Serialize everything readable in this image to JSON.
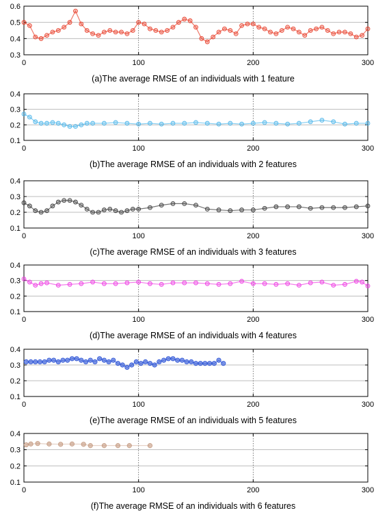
{
  "chart_data": [
    {
      "type": "line",
      "caption": "(a)The average RMSE of an individuals with 1 feature",
      "xlim": [
        0,
        300
      ],
      "ylim": [
        0.3,
        0.6
      ],
      "xticks": [
        0,
        100,
        200,
        300
      ],
      "yticks": [
        0.3,
        0.4,
        0.5,
        0.6
      ],
      "ytick_labels": [
        "0.3",
        "0.4",
        "0.5",
        "0.6"
      ],
      "grid": true,
      "marker": "circle",
      "color": "#e8402b",
      "series": [
        {
          "x": [
            0,
            5,
            10,
            15,
            20,
            25,
            30,
            35,
            40,
            45,
            50,
            55,
            60,
            65,
            70,
            75,
            80,
            85,
            90,
            95,
            100,
            105,
            110,
            115,
            120,
            125,
            130,
            135,
            140,
            145,
            150,
            155,
            160,
            165,
            170,
            175,
            180,
            185,
            190,
            195,
            200,
            205,
            210,
            215,
            220,
            225,
            230,
            235,
            240,
            245,
            250,
            255,
            260,
            265,
            270,
            275,
            280,
            285,
            290,
            295,
            300
          ],
          "values": [
            0.5,
            0.48,
            0.41,
            0.4,
            0.42,
            0.44,
            0.45,
            0.47,
            0.5,
            0.57,
            0.49,
            0.45,
            0.43,
            0.42,
            0.44,
            0.45,
            0.44,
            0.44,
            0.43,
            0.45,
            0.5,
            0.49,
            0.46,
            0.45,
            0.44,
            0.45,
            0.47,
            0.5,
            0.52,
            0.51,
            0.47,
            0.4,
            0.38,
            0.41,
            0.44,
            0.46,
            0.45,
            0.43,
            0.48,
            0.49,
            0.49,
            0.47,
            0.46,
            0.44,
            0.43,
            0.45,
            0.47,
            0.46,
            0.44,
            0.42,
            0.45,
            0.46,
            0.47,
            0.45,
            0.43,
            0.44,
            0.44,
            0.43,
            0.41,
            0.42,
            0.46
          ]
        }
      ]
    },
    {
      "type": "line",
      "caption": "(b)The average RMSE of an individuals with 2 features",
      "xlim": [
        0,
        300
      ],
      "ylim": [
        0.1,
        0.4
      ],
      "xticks": [
        0,
        100,
        200,
        300
      ],
      "yticks": [
        0.1,
        0.2,
        0.3,
        0.4
      ],
      "ytick_labels": [
        "0.1",
        "0.2",
        "0.3",
        "0.4"
      ],
      "grid": true,
      "marker": "circle",
      "color": "#4fb6ea",
      "series": [
        {
          "x": [
            0,
            5,
            10,
            15,
            20,
            25,
            30,
            35,
            40,
            45,
            50,
            55,
            60,
            70,
            80,
            90,
            100,
            110,
            120,
            130,
            140,
            150,
            160,
            170,
            180,
            190,
            200,
            210,
            220,
            230,
            240,
            250,
            260,
            270,
            280,
            290,
            300
          ],
          "values": [
            0.27,
            0.25,
            0.22,
            0.21,
            0.21,
            0.215,
            0.21,
            0.2,
            0.19,
            0.19,
            0.2,
            0.21,
            0.21,
            0.21,
            0.215,
            0.21,
            0.205,
            0.21,
            0.205,
            0.21,
            0.21,
            0.215,
            0.21,
            0.205,
            0.21,
            0.205,
            0.21,
            0.215,
            0.21,
            0.205,
            0.21,
            0.22,
            0.23,
            0.22,
            0.205,
            0.21,
            0.21
          ]
        }
      ]
    },
    {
      "type": "line",
      "caption": "(c)The average RMSE of an individuals with 3 features",
      "xlim": [
        0,
        300
      ],
      "ylim": [
        0.1,
        0.4
      ],
      "xticks": [
        0,
        100,
        200,
        300
      ],
      "yticks": [
        0.1,
        0.2,
        0.3,
        0.4
      ],
      "ytick_labels": [
        "0.1",
        "0.2",
        "0.3",
        "0.4"
      ],
      "grid": true,
      "marker": "circle",
      "color": "#3a3a3a",
      "series": [
        {
          "x": [
            0,
            5,
            10,
            15,
            20,
            25,
            30,
            35,
            40,
            45,
            50,
            55,
            60,
            65,
            70,
            75,
            80,
            85,
            90,
            95,
            100,
            110,
            120,
            130,
            140,
            150,
            160,
            170,
            180,
            190,
            200,
            210,
            220,
            230,
            240,
            250,
            260,
            270,
            280,
            290,
            300
          ],
          "values": [
            0.26,
            0.24,
            0.21,
            0.2,
            0.21,
            0.24,
            0.265,
            0.275,
            0.275,
            0.265,
            0.245,
            0.22,
            0.2,
            0.2,
            0.215,
            0.22,
            0.21,
            0.2,
            0.21,
            0.22,
            0.22,
            0.23,
            0.245,
            0.255,
            0.255,
            0.245,
            0.22,
            0.215,
            0.21,
            0.215,
            0.215,
            0.225,
            0.235,
            0.235,
            0.235,
            0.225,
            0.23,
            0.23,
            0.23,
            0.235,
            0.24
          ]
        }
      ]
    },
    {
      "type": "line",
      "caption": "(d)The average RMSE of an individuals with 4 features",
      "xlim": [
        0,
        300
      ],
      "ylim": [
        0.1,
        0.4
      ],
      "xticks": [
        0,
        100,
        200,
        300
      ],
      "yticks": [
        0.1,
        0.2,
        0.3,
        0.4
      ],
      "ytick_labels": [
        "0.1",
        "0.2",
        "0.3",
        "0.4"
      ],
      "grid": true,
      "marker": "circle",
      "color": "#ee3ee3",
      "series": [
        {
          "x": [
            0,
            5,
            10,
            15,
            20,
            30,
            40,
            50,
            60,
            70,
            80,
            90,
            100,
            110,
            120,
            130,
            140,
            150,
            160,
            170,
            180,
            190,
            200,
            210,
            220,
            230,
            240,
            250,
            260,
            270,
            280,
            290,
            295,
            300
          ],
          "values": [
            0.31,
            0.29,
            0.27,
            0.28,
            0.285,
            0.27,
            0.275,
            0.28,
            0.29,
            0.28,
            0.28,
            0.285,
            0.29,
            0.28,
            0.275,
            0.285,
            0.285,
            0.285,
            0.28,
            0.275,
            0.28,
            0.295,
            0.28,
            0.28,
            0.275,
            0.28,
            0.27,
            0.285,
            0.29,
            0.27,
            0.275,
            0.295,
            0.29,
            0.265
          ]
        }
      ]
    },
    {
      "type": "line",
      "caption": "(e)The average RMSE of an individuals with 5 features",
      "xlim": [
        0,
        300
      ],
      "ylim": [
        0.1,
        0.4
      ],
      "xticks": [
        0,
        100,
        200,
        300
      ],
      "yticks": [
        0.1,
        0.2,
        0.3,
        0.4
      ],
      "ytick_labels": [
        "0.1",
        "0.2",
        "0.3",
        "0.4"
      ],
      "grid": true,
      "marker": "circle",
      "color": "#2a52d6",
      "series": [
        {
          "x": [
            2,
            6,
            10,
            14,
            18,
            22,
            26,
            30,
            34,
            38,
            42,
            46,
            50,
            54,
            58,
            62,
            66,
            70,
            74,
            78,
            82,
            86,
            90,
            94,
            98,
            102,
            106,
            110,
            114,
            118,
            122,
            126,
            130,
            134,
            138,
            142,
            146,
            150,
            154,
            158,
            162,
            166,
            170,
            174
          ],
          "values": [
            0.32,
            0.32,
            0.32,
            0.32,
            0.32,
            0.33,
            0.33,
            0.32,
            0.33,
            0.33,
            0.34,
            0.34,
            0.33,
            0.32,
            0.33,
            0.32,
            0.34,
            0.33,
            0.32,
            0.33,
            0.31,
            0.3,
            0.285,
            0.3,
            0.32,
            0.31,
            0.32,
            0.31,
            0.3,
            0.32,
            0.33,
            0.34,
            0.34,
            0.33,
            0.33,
            0.32,
            0.32,
            0.31,
            0.31,
            0.31,
            0.31,
            0.31,
            0.33,
            0.31
          ]
        }
      ]
    },
    {
      "type": "line",
      "caption": "(f)The average RMSE of an individuals with 6 features",
      "xlim": [
        0,
        300
      ],
      "ylim": [
        0.1,
        0.4
      ],
      "xticks": [
        0,
        100,
        200,
        300
      ],
      "yticks": [
        0.1,
        0.2,
        0.3,
        0.4
      ],
      "ytick_labels": [
        "0.1",
        "0.2",
        "0.3",
        "0.4"
      ],
      "grid": true,
      "marker": "circle",
      "color": "#c49a80",
      "series": [
        {
          "x": [
            2,
            6,
            12,
            22,
            32,
            42,
            52,
            58,
            70,
            82,
            92,
            110
          ],
          "values": [
            0.33,
            0.335,
            0.338,
            0.335,
            0.333,
            0.335,
            0.333,
            0.325,
            0.325,
            0.325,
            0.325,
            0.325
          ]
        }
      ]
    }
  ]
}
